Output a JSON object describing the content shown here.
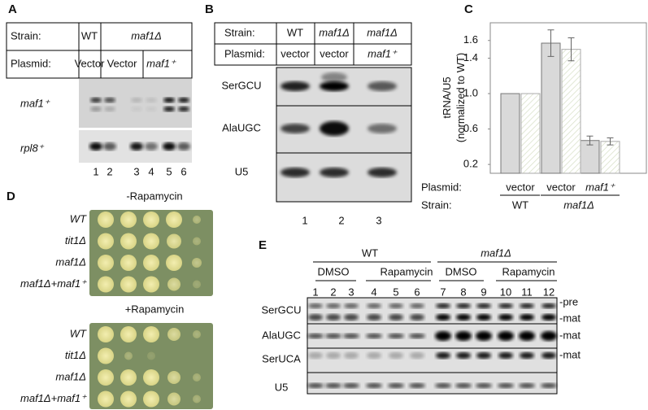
{
  "panel_a": {
    "label": "A",
    "strain_label": "Strain:",
    "strains": [
      "WT",
      "maf1Δ"
    ],
    "plasmid_label": "Plasmid:",
    "plasmids": [
      "Vector",
      "Vector",
      "maf1⁺"
    ],
    "probes": [
      "maf1⁺",
      "rpl8⁺"
    ],
    "lanes": [
      "1",
      "2",
      "3",
      "4",
      "5",
      "6"
    ]
  },
  "panel_b": {
    "label": "B",
    "strain_label": "Strain:",
    "strains": [
      "WT",
      "maf1Δ",
      "maf1Δ"
    ],
    "plasmid_label": "Plasmid:",
    "plasmids": [
      "vector",
      "vector",
      "maf1⁺"
    ],
    "probes": [
      "SerGCU",
      "AlaUGC",
      "U5"
    ],
    "lanes": [
      "1",
      "2",
      "3"
    ]
  },
  "chart_data": {
    "type": "bar",
    "label": "C",
    "y_label": [
      "tRNA/U5",
      "(normalized to WT)"
    ],
    "plasmid_label": "Plasmid:",
    "categories": [
      "vector",
      "vector",
      "maf1⁺"
    ],
    "strain_label": "Strain:",
    "strains": [
      "WT",
      "maf1Δ"
    ],
    "series": [
      {
        "color": "#d9d9d9",
        "values": [
          1.0,
          1.57,
          0.47
        ],
        "errors": [
          null,
          0.15,
          0.05
        ]
      },
      {
        "color": "#ffffff",
        "values": [
          1.0,
          1.5,
          0.46
        ],
        "errors": [
          null,
          0.13,
          0.04
        ]
      }
    ],
    "ylim": [
      0.1,
      1.8
    ],
    "yticks": [
      0.2,
      0.6,
      {
        "value": 1,
        "label": "1.0"
      },
      1.4,
      1.6
    ]
  },
  "panel_d": {
    "label": "D",
    "conditions": [
      "-Rapamycin",
      "+Rapamycin"
    ],
    "strains": [
      "WT",
      "tit1Δ",
      "maf1Δ",
      "maf1Δ+maf1⁺"
    ]
  },
  "panel_e": {
    "label": "E",
    "groups": [
      "WT",
      "maf1Δ"
    ],
    "treatments": [
      "DMSO",
      "Rapamycin",
      "DMSO",
      "Rapamycin"
    ],
    "lanes": [
      "1",
      "2",
      "3",
      "4",
      "5",
      "6",
      "7",
      "8",
      "9",
      "10",
      "11",
      "12"
    ],
    "probes": [
      "SerGCU",
      "AlaUGC",
      "SerUCA",
      "U5"
    ],
    "bands": [
      "-pre",
      "-mat",
      "-mat",
      "-mat"
    ]
  }
}
